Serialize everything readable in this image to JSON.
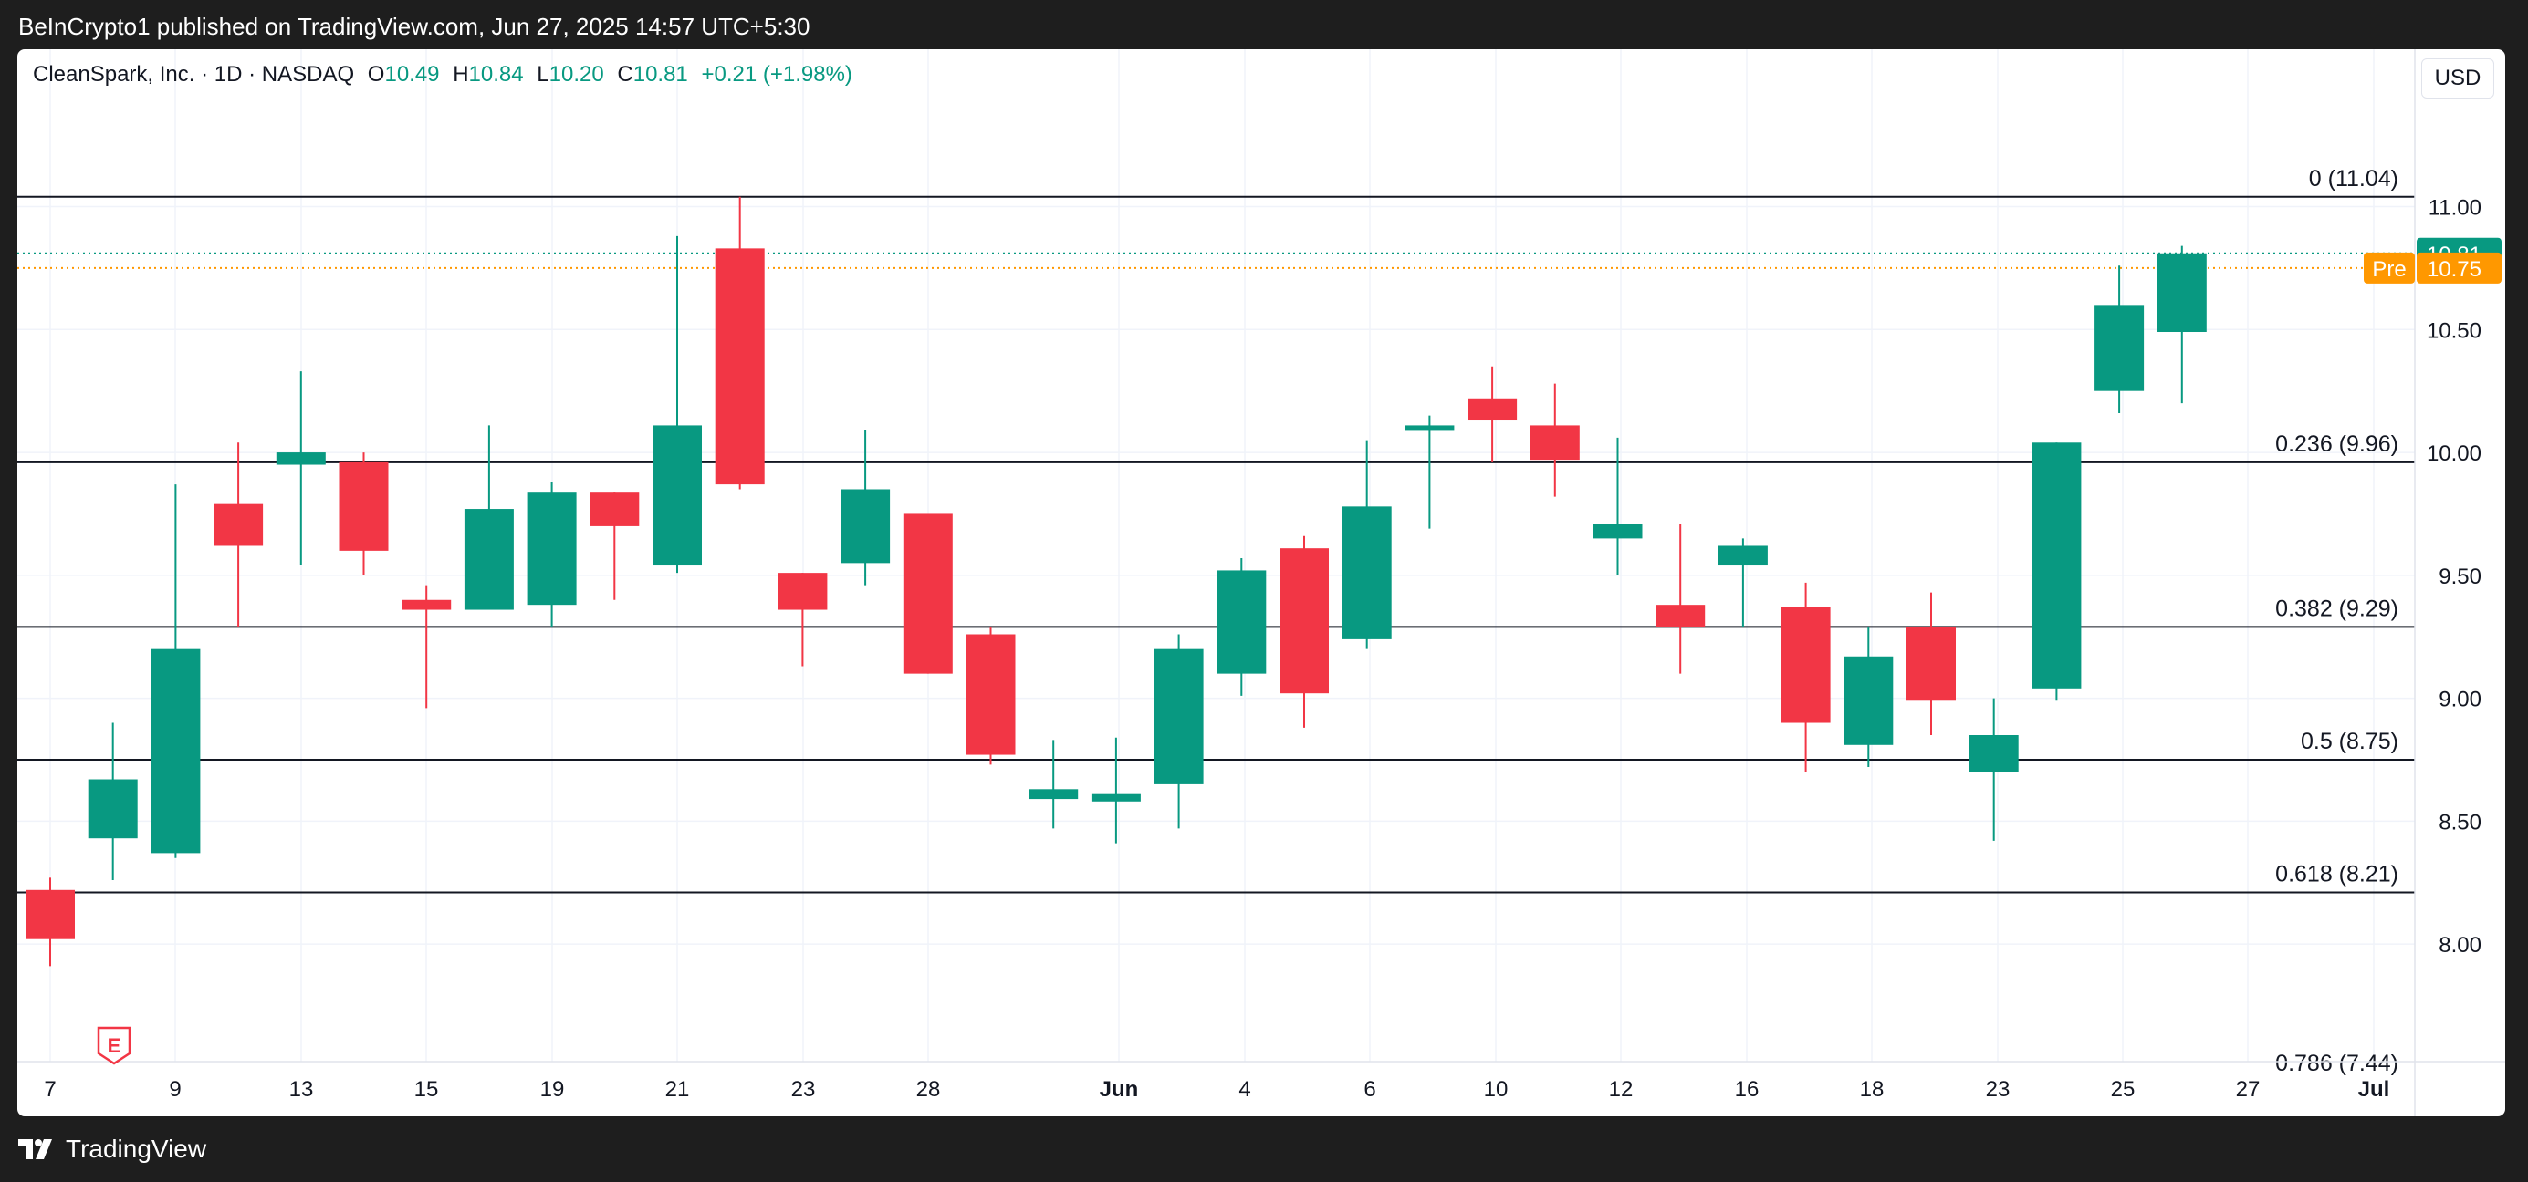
{
  "header": {
    "publisher": "BeInCrypto1 published on TradingView.com, Jun 27, 2025 14:57 UTC+5:30"
  },
  "legend": {
    "symbol": "CleanSpark, Inc. · 1D · NASDAQ",
    "o_label": "O",
    "o": "10.49",
    "h_label": "H",
    "h": "10.84",
    "l_label": "L",
    "l": "10.20",
    "c_label": "C",
    "c": "10.81",
    "change": "+0.21 (+1.98%)"
  },
  "currency": "USD",
  "footer": {
    "brand": "TradingView",
    "logo_icon": "tradingview-logo-icon"
  },
  "colors": {
    "up": "#089981",
    "down": "#f23645",
    "pre": "#ff9800",
    "level": "#131722"
  },
  "chart_data": {
    "type": "candlestick",
    "ylim": [
      7.4,
      11.72
    ],
    "y_ticks": [
      "8.00",
      "8.50",
      "9.00",
      "9.50",
      "10.00",
      "10.50",
      "11.00"
    ],
    "x_ticks": [
      "7",
      "9",
      "13",
      "15",
      "19",
      "21",
      "23",
      "28",
      "Jun",
      "4",
      "6",
      "10",
      "12",
      "16",
      "18",
      "23",
      "25",
      "27",
      "Jul"
    ],
    "fib_levels": [
      {
        "label": "0 (11.04)",
        "value": 11.04
      },
      {
        "label": "0.236 (9.96)",
        "value": 9.96
      },
      {
        "label": "0.382 (9.29)",
        "value": 9.29
      },
      {
        "label": "0.5 (8.75)",
        "value": 8.75
      },
      {
        "label": "0.618 (8.21)",
        "value": 8.21
      },
      {
        "label": "0.786 (7.44)",
        "value": 7.44
      }
    ],
    "last_price": {
      "label": "10.81",
      "value": 10.81
    },
    "pre_market": {
      "tag": "Pre",
      "label": "10.75",
      "value": 10.75
    },
    "event_marker": "E",
    "candles": [
      {
        "date": "May 7",
        "o": 8.22,
        "h": 8.27,
        "l": 7.91,
        "c": 8.02
      },
      {
        "date": "May 8",
        "o": 8.43,
        "h": 8.9,
        "l": 8.26,
        "c": 8.67
      },
      {
        "date": "May 9",
        "o": 8.37,
        "h": 9.87,
        "l": 8.35,
        "c": 9.2
      },
      {
        "date": "May 12",
        "o": 9.79,
        "h": 10.04,
        "l": 9.29,
        "c": 9.62
      },
      {
        "date": "May 13",
        "o": 9.95,
        "h": 10.33,
        "l": 9.54,
        "c": 10.0
      },
      {
        "date": "May 14",
        "o": 9.96,
        "h": 10.0,
        "l": 9.5,
        "c": 9.6
      },
      {
        "date": "May 15",
        "o": 9.4,
        "h": 9.46,
        "l": 8.96,
        "c": 9.36
      },
      {
        "date": "May 16",
        "o": 9.36,
        "h": 10.11,
        "l": 9.36,
        "c": 9.77
      },
      {
        "date": "May 19",
        "o": 9.38,
        "h": 9.88,
        "l": 9.29,
        "c": 9.84
      },
      {
        "date": "May 20",
        "o": 9.84,
        "h": 9.84,
        "l": 9.4,
        "c": 9.7
      },
      {
        "date": "May 21",
        "o": 9.54,
        "h": 10.88,
        "l": 9.51,
        "c": 10.11
      },
      {
        "date": "May 22",
        "o": 10.83,
        "h": 11.04,
        "l": 9.85,
        "c": 9.87
      },
      {
        "date": "May 23",
        "o": 9.51,
        "h": 9.51,
        "l": 9.13,
        "c": 9.36
      },
      {
        "date": "May 27",
        "o": 9.55,
        "h": 10.09,
        "l": 9.46,
        "c": 9.85
      },
      {
        "date": "May 28",
        "o": 9.75,
        "h": 9.75,
        "l": 9.1,
        "c": 9.1
      },
      {
        "date": "May 29",
        "o": 9.26,
        "h": 9.29,
        "l": 8.73,
        "c": 8.77
      },
      {
        "date": "May 30",
        "o": 8.59,
        "h": 8.83,
        "l": 8.47,
        "c": 8.63
      },
      {
        "date": "Jun 2",
        "o": 8.58,
        "h": 8.84,
        "l": 8.41,
        "c": 8.61
      },
      {
        "date": "Jun 3",
        "o": 8.65,
        "h": 9.26,
        "l": 8.47,
        "c": 9.2
      },
      {
        "date": "Jun 4",
        "o": 9.1,
        "h": 9.57,
        "l": 9.01,
        "c": 9.52
      },
      {
        "date": "Jun 5",
        "o": 9.61,
        "h": 9.66,
        "l": 8.88,
        "c": 9.02
      },
      {
        "date": "Jun 6",
        "o": 9.24,
        "h": 10.05,
        "l": 9.2,
        "c": 9.78
      },
      {
        "date": "Jun 9",
        "o": 10.1,
        "h": 10.15,
        "l": 9.69,
        "c": 10.11
      },
      {
        "date": "Jun 10",
        "o": 10.22,
        "h": 10.35,
        "l": 9.96,
        "c": 10.13
      },
      {
        "date": "Jun 11",
        "o": 10.11,
        "h": 10.28,
        "l": 9.82,
        "c": 9.97
      },
      {
        "date": "Jun 12",
        "o": 9.65,
        "h": 10.06,
        "l": 9.5,
        "c": 9.71
      },
      {
        "date": "Jun 13",
        "o": 9.38,
        "h": 9.71,
        "l": 9.1,
        "c": 9.29
      },
      {
        "date": "Jun 16",
        "o": 9.54,
        "h": 9.65,
        "l": 9.29,
        "c": 9.62
      },
      {
        "date": "Jun 17",
        "o": 9.37,
        "h": 9.47,
        "l": 8.7,
        "c": 8.9
      },
      {
        "date": "Jun 18",
        "o": 8.81,
        "h": 9.29,
        "l": 8.72,
        "c": 9.17
      },
      {
        "date": "Jun 20",
        "o": 9.29,
        "h": 9.43,
        "l": 8.85,
        "c": 8.99
      },
      {
        "date": "Jun 23",
        "o": 8.7,
        "h": 9.0,
        "l": 8.42,
        "c": 8.85
      },
      {
        "date": "Jun 24",
        "o": 9.04,
        "h": 10.04,
        "l": 8.99,
        "c": 10.04
      },
      {
        "date": "Jun 25",
        "o": 10.25,
        "h": 10.76,
        "l": 10.16,
        "c": 10.6
      },
      {
        "date": "Jun 26",
        "o": 10.49,
        "h": 10.84,
        "l": 10.2,
        "c": 10.81
      }
    ]
  }
}
